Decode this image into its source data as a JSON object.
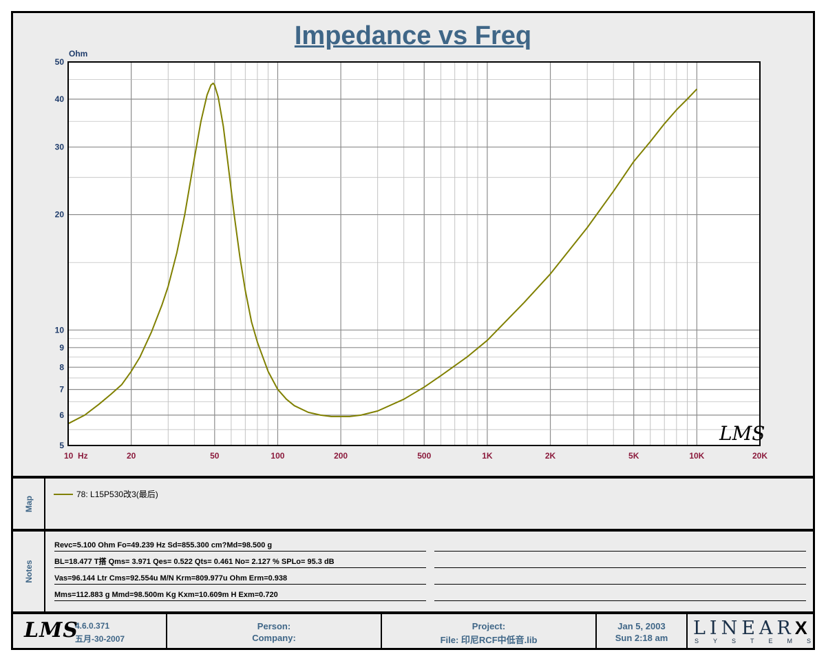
{
  "chart_data": {
    "type": "line",
    "title": "Impedance vs Freq",
    "xlabel": "",
    "ylabel": "Ohm",
    "x_scale": "log",
    "y_scale": "log",
    "xlim": [
      10,
      20000
    ],
    "ylim": [
      5,
      50
    ],
    "x_ticks": [
      {
        "value": 10,
        "label": "10  Hz"
      },
      {
        "value": 20,
        "label": "20"
      },
      {
        "value": 50,
        "label": "50"
      },
      {
        "value": 100,
        "label": "100"
      },
      {
        "value": 200,
        "label": "200"
      },
      {
        "value": 500,
        "label": "500"
      },
      {
        "value": 1000,
        "label": "1K"
      },
      {
        "value": 2000,
        "label": "2K"
      },
      {
        "value": 5000,
        "label": "5K"
      },
      {
        "value": 10000,
        "label": "10K"
      },
      {
        "value": 20000,
        "label": "20K"
      }
    ],
    "y_ticks": [
      {
        "value": 5,
        "label": "5"
      },
      {
        "value": 6,
        "label": "6"
      },
      {
        "value": 7,
        "label": "7"
      },
      {
        "value": 8,
        "label": "8"
      },
      {
        "value": 9,
        "label": "9"
      },
      {
        "value": 10,
        "label": "10"
      },
      {
        "value": 20,
        "label": "20"
      },
      {
        "value": 30,
        "label": "30"
      },
      {
        "value": 40,
        "label": "40"
      },
      {
        "value": 50,
        "label": "50"
      }
    ],
    "grid": true,
    "watermark": "LMS",
    "series": [
      {
        "name": "78: L15P530改3(最后)",
        "color": "#808000",
        "x": [
          10,
          12,
          14,
          16,
          18,
          20,
          22,
          25,
          28,
          30,
          33,
          36,
          40,
          43,
          46,
          48,
          49.2,
          50,
          52,
          55,
          58,
          62,
          66,
          70,
          75,
          80,
          90,
          100,
          110,
          120,
          140,
          160,
          180,
          200,
          220,
          250,
          300,
          400,
          500,
          600,
          800,
          1000,
          1500,
          2000,
          3000,
          4000,
          5000,
          6000,
          7000,
          8000,
          9000,
          10000
        ],
        "y": [
          5.7,
          6.0,
          6.4,
          6.8,
          7.2,
          7.8,
          8.5,
          9.9,
          11.6,
          13.0,
          15.9,
          20.0,
          28.0,
          35.0,
          41.0,
          43.5,
          44.0,
          43.5,
          40.5,
          34.0,
          27.0,
          20.0,
          15.5,
          12.7,
          10.5,
          9.3,
          7.8,
          7.0,
          6.6,
          6.35,
          6.1,
          6.0,
          5.95,
          5.95,
          5.95,
          6.0,
          6.15,
          6.6,
          7.1,
          7.6,
          8.5,
          9.4,
          11.8,
          14.0,
          18.5,
          23.0,
          27.5,
          31.0,
          34.5,
          37.5,
          40.0,
          42.5
        ]
      }
    ]
  },
  "map": {
    "label": "Map",
    "legend_text": "78: L15P530改3(最后)",
    "legend_color": "#808000"
  },
  "notes": {
    "label": "Notes",
    "lines": [
      "Revc=5.100 Ohm  Fo=49.239 Hz  Sd=855.300 cm?Md=98.500 g",
      "BL=18.477 T搭  Qms= 3.971  Qes= 0.522  Qts= 0.461  No= 2.127 %  SPLo= 95.3 dB",
      "Vas=96.144 Ltr  Cms=92.554u M/N  Krm=809.977u Ohm  Erm=0.938",
      "Mms=112.883 g  Mmd=98.500m Kg  Kxm=10.609m H  Exm=0.720"
    ]
  },
  "footer": {
    "logo": "LMS",
    "version": "4.6.0.371",
    "build_date": "五月-30-2007",
    "person_label": "Person:",
    "company_label": "Company:",
    "project_label": "Project:",
    "file_label": "File: 印尼RCF中低音.lib",
    "date": "Jan  5, 2003",
    "time": "Sun  2:18 am",
    "brand_top": "LINEAR",
    "brand_x": "X",
    "brand_bottom": "SYSTEMS"
  },
  "colors": {
    "title": "#3f6687",
    "axis_labels": "#8b1a3c",
    "y_labels": "#1f3c6b",
    "curve": "#808000",
    "grid": "#a8a8a8",
    "background": "#ececec"
  }
}
